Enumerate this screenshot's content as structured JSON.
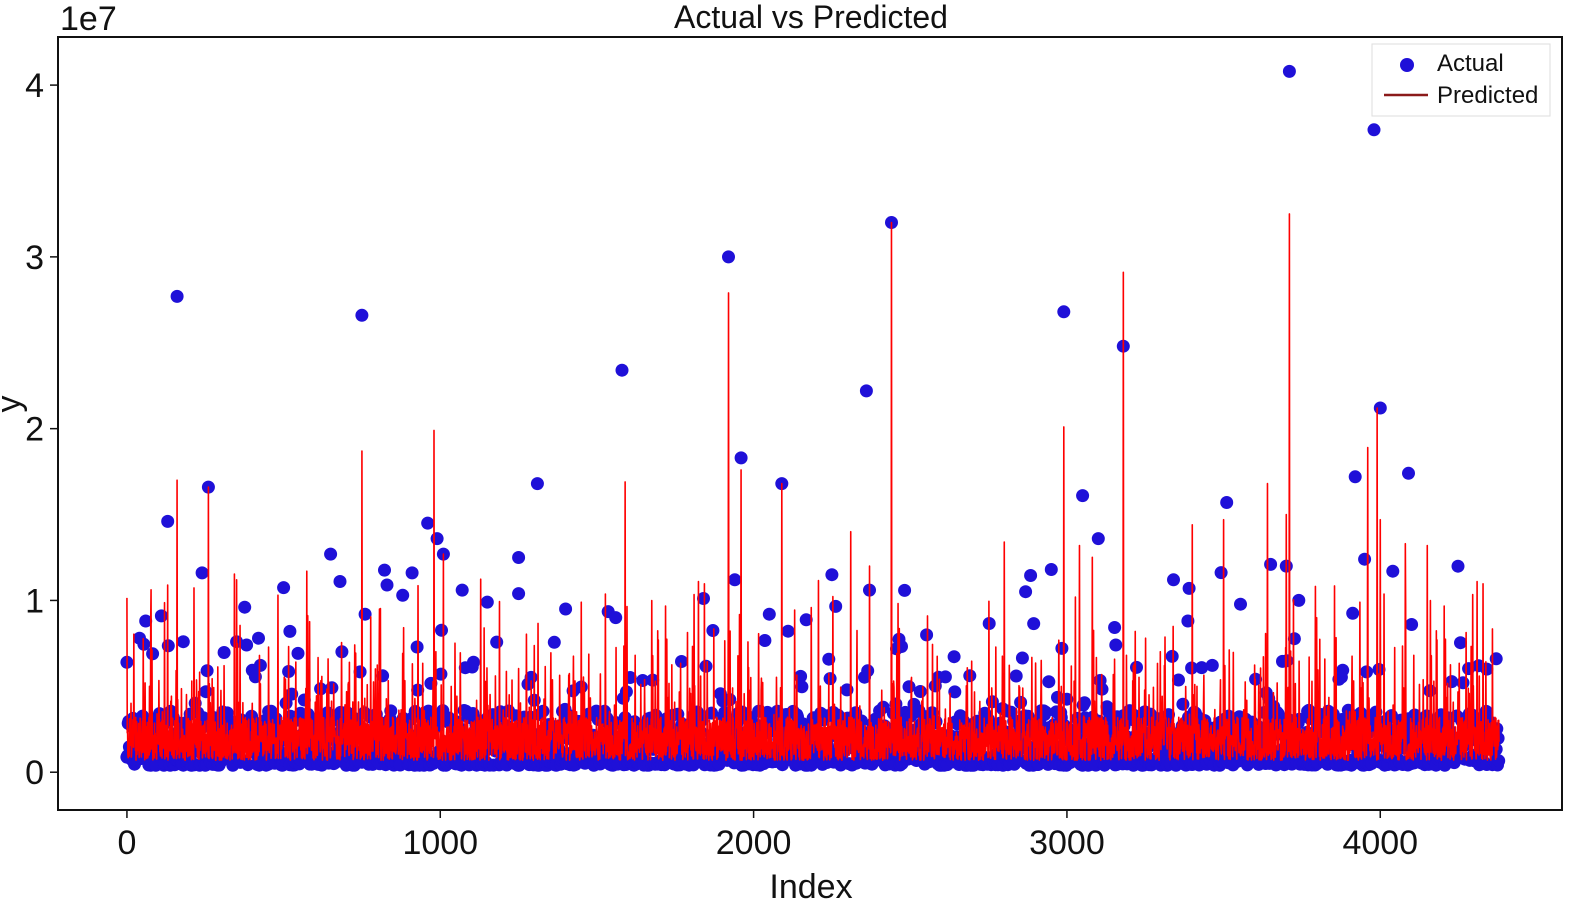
{
  "chart_data": {
    "type": "scatter",
    "title": "Actual vs Predicted",
    "xlabel": "Index",
    "ylabel": "y",
    "y_offset_label": "1e7",
    "xlim": [
      -220,
      4580
    ],
    "ylim": [
      -0.22,
      4.28
    ],
    "xticks": [
      0,
      1000,
      2000,
      3000,
      4000
    ],
    "xtick_labels": [
      "0",
      "1000",
      "2000",
      "3000",
      "4000"
    ],
    "yticks": [
      0,
      1,
      2,
      3,
      4
    ],
    "ytick_labels": [
      "0",
      "1",
      "2",
      "3",
      "4"
    ],
    "n_points": 4380,
    "grid": false,
    "legend_position": "top-right",
    "series": [
      {
        "name": "Actual",
        "kind": "scatter",
        "color": "#1f10d8",
        "notable_points": [
          {
            "x": 0,
            "y": 0.64
          },
          {
            "x": 40,
            "y": 0.78
          },
          {
            "x": 60,
            "y": 0.88
          },
          {
            "x": 110,
            "y": 0.91
          },
          {
            "x": 130,
            "y": 1.46
          },
          {
            "x": 160,
            "y": 2.77
          },
          {
            "x": 180,
            "y": 0.76
          },
          {
            "x": 240,
            "y": 1.16
          },
          {
            "x": 260,
            "y": 1.66
          },
          {
            "x": 350,
            "y": 0.76
          },
          {
            "x": 420,
            "y": 0.78
          },
          {
            "x": 520,
            "y": 0.82
          },
          {
            "x": 650,
            "y": 1.27
          },
          {
            "x": 680,
            "y": 1.11
          },
          {
            "x": 750,
            "y": 2.66
          },
          {
            "x": 760,
            "y": 0.92
          },
          {
            "x": 830,
            "y": 1.09
          },
          {
            "x": 880,
            "y": 1.03
          },
          {
            "x": 910,
            "y": 1.16
          },
          {
            "x": 960,
            "y": 1.45
          },
          {
            "x": 990,
            "y": 1.36
          },
          {
            "x": 1010,
            "y": 1.27
          },
          {
            "x": 1070,
            "y": 1.06
          },
          {
            "x": 1150,
            "y": 0.99
          },
          {
            "x": 1250,
            "y": 1.25
          },
          {
            "x": 1250,
            "y": 1.04
          },
          {
            "x": 1310,
            "y": 1.68
          },
          {
            "x": 1400,
            "y": 0.95
          },
          {
            "x": 1580,
            "y": 2.34
          },
          {
            "x": 1560,
            "y": 0.9
          },
          {
            "x": 1920,
            "y": 3.0
          },
          {
            "x": 1940,
            "y": 1.12
          },
          {
            "x": 1960,
            "y": 1.83
          },
          {
            "x": 2050,
            "y": 0.92
          },
          {
            "x": 2090,
            "y": 1.68
          },
          {
            "x": 2250,
            "y": 1.15
          },
          {
            "x": 2360,
            "y": 2.22
          },
          {
            "x": 2370,
            "y": 1.06
          },
          {
            "x": 2440,
            "y": 3.2
          },
          {
            "x": 2950,
            "y": 1.18
          },
          {
            "x": 2990,
            "y": 2.68
          },
          {
            "x": 3050,
            "y": 1.61
          },
          {
            "x": 3100,
            "y": 1.36
          },
          {
            "x": 3180,
            "y": 2.48
          },
          {
            "x": 3340,
            "y": 1.12
          },
          {
            "x": 3390,
            "y": 1.07
          },
          {
            "x": 3510,
            "y": 1.57
          },
          {
            "x": 3650,
            "y": 1.21
          },
          {
            "x": 3710,
            "y": 4.08
          },
          {
            "x": 3700,
            "y": 1.2
          },
          {
            "x": 3740,
            "y": 1.0
          },
          {
            "x": 3920,
            "y": 1.72
          },
          {
            "x": 3950,
            "y": 1.24
          },
          {
            "x": 3980,
            "y": 3.74
          },
          {
            "x": 4000,
            "y": 2.12
          },
          {
            "x": 4040,
            "y": 1.17
          },
          {
            "x": 4090,
            "y": 1.74
          },
          {
            "x": 4100,
            "y": 0.86
          },
          {
            "x": 4340,
            "y": 0.6
          },
          {
            "x": 4370,
            "y": 0.66
          }
        ]
      },
      {
        "name": "Predicted",
        "kind": "line",
        "color": "#ff0000",
        "legend_color": "#8b1a1a",
        "notable_peaks": [
          {
            "x": 130,
            "y": 1.09
          },
          {
            "x": 160,
            "y": 1.7
          },
          {
            "x": 260,
            "y": 1.66
          },
          {
            "x": 350,
            "y": 1.12
          },
          {
            "x": 750,
            "y": 1.87
          },
          {
            "x": 980,
            "y": 1.99
          },
          {
            "x": 1010,
            "y": 1.27
          },
          {
            "x": 1590,
            "y": 1.69
          },
          {
            "x": 1920,
            "y": 2.79
          },
          {
            "x": 1960,
            "y": 1.76
          },
          {
            "x": 2090,
            "y": 1.68
          },
          {
            "x": 2310,
            "y": 1.4
          },
          {
            "x": 2370,
            "y": 1.2
          },
          {
            "x": 2440,
            "y": 3.2
          },
          {
            "x": 2800,
            "y": 1.34
          },
          {
            "x": 2990,
            "y": 2.01
          },
          {
            "x": 3040,
            "y": 1.32
          },
          {
            "x": 3180,
            "y": 2.91
          },
          {
            "x": 3400,
            "y": 1.44
          },
          {
            "x": 3500,
            "y": 1.47
          },
          {
            "x": 3640,
            "y": 1.68
          },
          {
            "x": 3700,
            "y": 1.5
          },
          {
            "x": 3710,
            "y": 3.25
          },
          {
            "x": 3960,
            "y": 1.89
          },
          {
            "x": 3990,
            "y": 2.12
          },
          {
            "x": 4000,
            "y": 1.47
          },
          {
            "x": 4080,
            "y": 1.33
          },
          {
            "x": 4150,
            "y": 1.32
          }
        ]
      }
    ]
  }
}
